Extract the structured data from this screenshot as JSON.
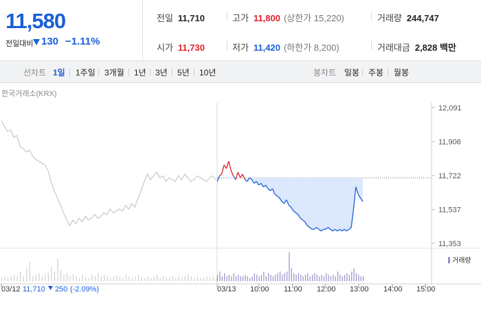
{
  "quote": {
    "price": "11,580",
    "change_label": "전일대비",
    "change_amount": "130",
    "change_pct": "−1.11%",
    "prev_close_label": "전일",
    "prev_close": "11,710",
    "open_label": "시가",
    "open": "11,730",
    "high_label": "고가",
    "high": "11,800",
    "upper_limit": "(상한가 15,220)",
    "low_label": "저가",
    "low": "11,420",
    "lower_limit": "(하한가 8,200)",
    "volume_label": "거래량",
    "volume": "244,747",
    "amount_label": "거래대금",
    "amount": "2,828 백만",
    "down_color": "#1a5fd8",
    "up_color": "#e0202a"
  },
  "tabs": {
    "line_title": "선차트",
    "line_periods": [
      "1일",
      "1주일",
      "3개월",
      "1년",
      "3년",
      "5년",
      "10년"
    ],
    "active_period": "1일",
    "candle_title": "봉차트",
    "candle_periods": [
      "일봉",
      "주봉",
      "월봉"
    ]
  },
  "chart_data": {
    "type": "line",
    "source": "한국거래소(KRX)",
    "y_ticks": [
      12091,
      11906,
      11722,
      11537,
      11353
    ],
    "y_tick_labels": [
      "12,091",
      "11,906",
      "11,722",
      "11,537",
      "11,353"
    ],
    "ylim": [
      11353,
      12091
    ],
    "prev_close": 11710,
    "x_tick_labels": [
      "03/12",
      "03/13",
      "10:00",
      "11:00",
      "12:00",
      "13:00",
      "14:00",
      "15:00"
    ],
    "volume_legend": "거래량",
    "prev_day_summary": {
      "date": "03/12",
      "close": "11,710",
      "change": "250",
      "pct": "(-2.09%)"
    },
    "series": [
      {
        "values": [
          12020,
          11990,
          11960,
          11970,
          11930,
          11940,
          11880,
          11870,
          11850,
          11860,
          11830,
          11810,
          11800,
          11790,
          11780,
          11750,
          11690,
          11640,
          11600,
          11560,
          11520,
          11480,
          11450,
          11480,
          11460,
          11490,
          11470,
          11500,
          11480,
          11490,
          11510,
          11490,
          11500,
          11520,
          11510,
          11540,
          11520,
          11530,
          11540,
          11530,
          11560,
          11540,
          11570,
          11550,
          11600,
          11640,
          11690,
          11730,
          11700,
          11720,
          11740,
          11710,
          11720,
          11690,
          11710,
          11700,
          11690,
          11720,
          11700,
          11730,
          11710,
          11690,
          11700,
          11720,
          11710,
          11700,
          11690,
          11710,
          11720,
          11700
        ]
      },
      {
        "values": [
          11690,
          11720,
          11730,
          11780,
          11760,
          11800,
          11750,
          11720,
          11700,
          11740,
          11710,
          11730,
          11700,
          11690,
          11710,
          11700,
          11680,
          11690,
          11670,
          11680,
          11660,
          11670,
          11650,
          11640,
          11650,
          11620,
          11610,
          11600,
          11580,
          11570,
          11590,
          11560,
          11550,
          11530,
          11520,
          11510,
          11490,
          11480,
          11470,
          11450,
          11440,
          11430,
          11430,
          11440,
          11430,
          11420,
          11430,
          11430,
          11440,
          11430,
          11420,
          11430,
          11420,
          11430,
          11420,
          11430,
          11420,
          11430,
          11440,
          11540,
          11660,
          11620,
          11600,
          11580
        ]
      }
    ],
    "volume": {
      "prev": [
        2,
        3,
        2,
        3,
        4,
        3,
        6,
        3,
        8,
        12,
        3,
        4,
        5,
        3,
        4,
        5,
        9,
        6,
        14,
        7,
        4,
        5,
        3,
        4,
        3,
        2,
        4,
        3,
        2,
        4,
        3,
        5,
        3,
        4,
        3,
        2,
        3,
        4,
        3,
        2,
        4,
        3,
        2,
        3,
        4,
        3,
        2,
        3,
        2,
        3,
        4,
        2,
        3,
        2,
        2,
        3,
        2,
        3,
        2,
        3,
        4,
        3,
        2,
        3,
        2,
        2,
        3,
        2,
        3,
        2
      ],
      "today": [
        4,
        6,
        3,
        5,
        3,
        4,
        3,
        5,
        3,
        4,
        3,
        3,
        4,
        3,
        2,
        3,
        5,
        4,
        3,
        4,
        6,
        3,
        5,
        4,
        3,
        4,
        5,
        6,
        4,
        5,
        6,
        18,
        8,
        5,
        4,
        5,
        4,
        3,
        4,
        5,
        3,
        4,
        5,
        4,
        3,
        4,
        3,
        5,
        4,
        3,
        4,
        3,
        6,
        4,
        3,
        4,
        5,
        4,
        6,
        8,
        5,
        4,
        3,
        3
      ]
    }
  }
}
